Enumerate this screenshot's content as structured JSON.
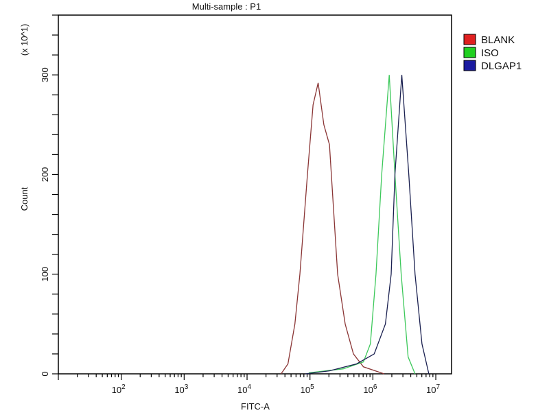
{
  "chart_data": {
    "type": "line",
    "title": "Multi-sample : P1",
    "xlabel": "FITC-A",
    "ylabel": "Count",
    "y_multiplier_label": "(x 10^1)",
    "x_scale": "log",
    "xlim": [
      10,
      17800000
    ],
    "ylim": [
      0,
      360
    ],
    "x_tick_labels": [
      {
        "value": 100,
        "base": "10",
        "exp": "2"
      },
      {
        "value": 1000,
        "base": "10",
        "exp": "3"
      },
      {
        "value": 10000,
        "base": "10",
        "exp": "4"
      },
      {
        "value": 100000,
        "base": "10",
        "exp": "5"
      },
      {
        "value": 1000000,
        "base": "10",
        "exp": "6"
      },
      {
        "value": 10000000,
        "base": "10",
        "exp": "7"
      }
    ],
    "y_tick_labels": [
      "0",
      "100",
      "200",
      "300"
    ],
    "grid": false,
    "legend_position": "right",
    "series": [
      {
        "name": "BLANK",
        "color": "#e02020",
        "x": [
          34700,
          44700,
          57500,
          69200,
          91200,
          112000,
          135000,
          166000,
          204000,
          275000,
          363000,
          490000,
          708000,
          1510000
        ],
        "y": [
          0,
          10,
          50,
          100,
          200,
          270,
          292,
          250,
          230,
          100,
          50,
          20,
          7,
          0
        ]
      },
      {
        "name": "ISO",
        "color": "#20d020",
        "x": [
          95500,
          339000,
          708000,
          912000,
          1120000,
          1380000,
          1820000,
          2240000,
          2820000,
          3630000,
          4680000
        ],
        "y": [
          1,
          5,
          12,
          30,
          100,
          200,
          300,
          200,
          100,
          17,
          0
        ]
      },
      {
        "name": "DLGAP1",
        "color": "#1a1aa0",
        "x": [
          85100,
          204000,
          550000,
          1050000,
          1580000,
          1950000,
          2240000,
          2880000,
          3720000,
          4680000,
          6030000,
          7760000
        ],
        "y": [
          0,
          3,
          10,
          20,
          50,
          100,
          200,
          300,
          200,
          100,
          30,
          0
        ]
      }
    ]
  }
}
